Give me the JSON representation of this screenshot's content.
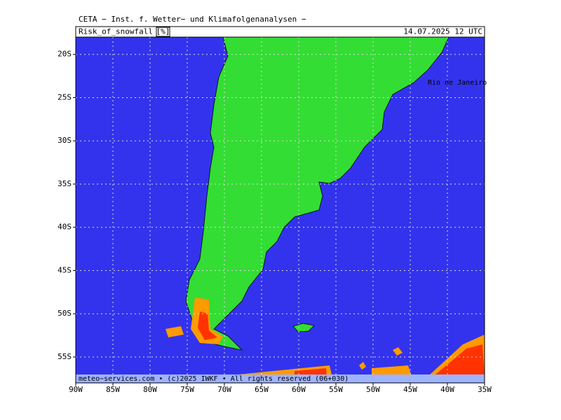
{
  "header": {
    "title": "CETA − Inst. f. Wetter− und Klimafolgenanalysen −",
    "product": "Risk_of_snowfall",
    "unit": "[%]",
    "valid": "14.07.2025  12 UTC"
  },
  "map": {
    "lonlim": [
      -90,
      -35
    ],
    "lonticks": [
      {
        "value": -90,
        "label": "90W"
      },
      {
        "value": -85,
        "label": "85W"
      },
      {
        "value": -80,
        "label": "80W"
      },
      {
        "value": -75,
        "label": "75W"
      },
      {
        "value": -70,
        "label": "70W"
      },
      {
        "value": -65,
        "label": "65W"
      },
      {
        "value": -60,
        "label": "60W"
      },
      {
        "value": -55,
        "label": "55W"
      },
      {
        "value": -50,
        "label": "50W"
      },
      {
        "value": -45,
        "label": "45W"
      },
      {
        "value": -40,
        "label": "40W"
      },
      {
        "value": -35,
        "label": "35W"
      }
    ],
    "latlim": [
      -58,
      -18
    ],
    "latticks": [
      {
        "value": -20,
        "label": "20S"
      },
      {
        "value": -25,
        "label": "25S"
      },
      {
        "value": -30,
        "label": "30S"
      },
      {
        "value": -35,
        "label": "35S"
      },
      {
        "value": -40,
        "label": "40S"
      },
      {
        "value": -45,
        "label": "45S"
      },
      {
        "value": -50,
        "label": "50S"
      },
      {
        "value": -55,
        "label": "55S"
      }
    ],
    "grid": true,
    "place_labels": [
      "Rio de Janeiro"
    ]
  },
  "footer": "meteo−services.com • (c)2025 IWKF • All rights reserved (06+030)"
}
